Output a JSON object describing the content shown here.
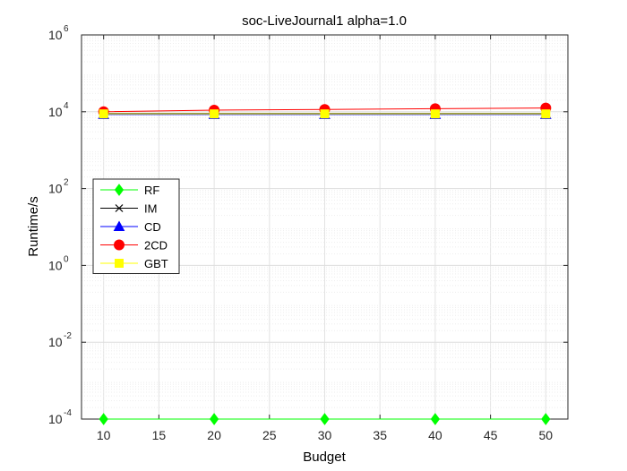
{
  "chart_data": {
    "type": "line",
    "title": "soc-LiveJournal1 alpha=1.0",
    "xlabel": "Budget",
    "ylabel": "Runtime/s",
    "x": [
      10,
      20,
      30,
      40,
      50
    ],
    "xlim": [
      8,
      52
    ],
    "xticks": [
      "10",
      "15",
      "20",
      "25",
      "30",
      "35",
      "40",
      "45",
      "50"
    ],
    "yscale": "log",
    "ylim": [
      0.0001,
      1000000
    ],
    "yticks": [
      {
        "base": "10",
        "exp": "-4"
      },
      {
        "base": "10",
        "exp": "-2"
      },
      {
        "base": "10",
        "exp": "0"
      },
      {
        "base": "10",
        "exp": "2"
      },
      {
        "base": "10",
        "exp": "4"
      },
      {
        "base": "10",
        "exp": "6"
      }
    ],
    "grid": true,
    "legend_position": "left",
    "series": [
      {
        "name": "RF",
        "color": "#00ff00",
        "marker": "diamond",
        "values": [
          0.0001,
          0.0001,
          0.0001,
          0.0001,
          0.0001
        ]
      },
      {
        "name": "IM",
        "color": "#000000",
        "marker": "x",
        "values": [
          9000,
          9000,
          9000,
          9000,
          9000
        ]
      },
      {
        "name": "CD",
        "color": "#0000ff",
        "marker": "triangle",
        "values": [
          8500,
          8500,
          8500,
          8500,
          8500
        ]
      },
      {
        "name": "2CD",
        "color": "#ff0000",
        "marker": "circle",
        "values": [
          10000,
          11000,
          11500,
          12000,
          12500
        ]
      },
      {
        "name": "GBT",
        "color": "#ffff00",
        "marker": "square",
        "values": [
          8800,
          8800,
          8800,
          8800,
          8800
        ]
      }
    ]
  }
}
